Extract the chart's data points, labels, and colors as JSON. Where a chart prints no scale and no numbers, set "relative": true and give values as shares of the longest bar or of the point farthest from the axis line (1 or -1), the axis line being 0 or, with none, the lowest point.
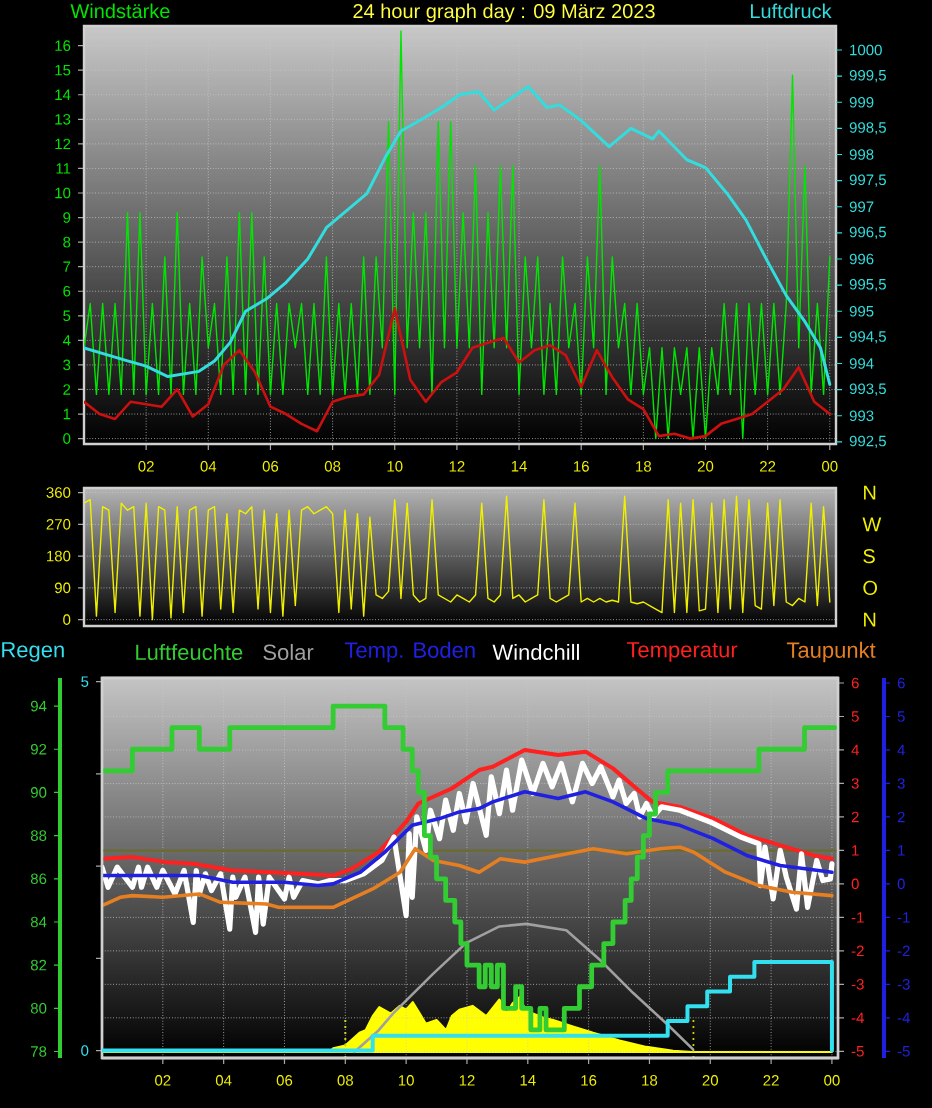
{
  "chart_data": [
    {
      "type": "line",
      "title": "24 hour graph day : 09 März 2023",
      "ylabel": "Windstärke",
      "y2label": "Luftdruck",
      "grid": true,
      "xlim": [
        "2023-03-09T00:00",
        "2023-03-10T00:12"
      ],
      "xticks": [
        {
          "value": "2023-03-09T02:00",
          "label": "02"
        },
        {
          "value": "2023-03-09T04:00",
          "label": "04"
        },
        {
          "value": "2023-03-09T06:00",
          "label": "06"
        },
        {
          "value": "2023-03-09T08:00",
          "label": "08"
        },
        {
          "value": "2023-03-09T10:00",
          "label": "10"
        },
        {
          "value": "2023-03-09T12:00",
          "label": "12"
        },
        {
          "value": "2023-03-09T14:00",
          "label": "14"
        },
        {
          "value": "2023-03-09T16:00",
          "label": "16"
        },
        {
          "value": "2023-03-09T18:00",
          "label": "18"
        },
        {
          "value": "2023-03-09T20:00",
          "label": "20"
        },
        {
          "value": "2023-03-09T22:00",
          "label": "22"
        },
        {
          "value": "2023-03-10T00:00",
          "label": "00"
        }
      ],
      "ylim": [
        -0.22,
        16.8
      ],
      "yticks": [
        0,
        1,
        2,
        3,
        4,
        5,
        6,
        7,
        8,
        9,
        10,
        11,
        12,
        13,
        14,
        15,
        16
      ],
      "y2lim": [
        992.46,
        1000.46
      ],
      "y2ticks": [
        {
          "value": 992.5,
          "label": "992,5"
        },
        993,
        {
          "value": 993.5,
          "label": "993,5"
        },
        994,
        {
          "value": 994.5,
          "label": "994,5"
        },
        995,
        {
          "value": 995.5,
          "label": "995,5"
        },
        996,
        {
          "value": 996.5,
          "label": "996,5"
        },
        997,
        {
          "value": 997.5,
          "label": "997,5"
        },
        998,
        {
          "value": 998.5,
          "label": "998,5"
        },
        999,
        {
          "value": 999.5,
          "label": "999,5"
        },
        1000
      ],
      "x": [
        "2023-03-09T00:00",
        "2023-03-09T00:12",
        "2023-03-09T00:24",
        "2023-03-09T00:36",
        "2023-03-09T00:48",
        "2023-03-09T01:00",
        "2023-03-09T01:12",
        "2023-03-09T01:24",
        "2023-03-09T01:36",
        "2023-03-09T01:48",
        "2023-03-09T02:00",
        "2023-03-09T02:12",
        "2023-03-09T02:24",
        "2023-03-09T02:36",
        "2023-03-09T02:48",
        "2023-03-09T03:00",
        "2023-03-09T03:12",
        "2023-03-09T03:24",
        "2023-03-09T03:36",
        "2023-03-09T03:48",
        "2023-03-09T04:00",
        "2023-03-09T04:12",
        "2023-03-09T04:24",
        "2023-03-09T04:36",
        "2023-03-09T04:48",
        "2023-03-09T05:00",
        "2023-03-09T05:12",
        "2023-03-09T05:24",
        "2023-03-09T05:36",
        "2023-03-09T05:48",
        "2023-03-09T06:00",
        "2023-03-09T06:12",
        "2023-03-09T06:24",
        "2023-03-09T06:36",
        "2023-03-09T06:48",
        "2023-03-09T07:00",
        "2023-03-09T07:12",
        "2023-03-09T07:24",
        "2023-03-09T07:36",
        "2023-03-09T07:48",
        "2023-03-09T08:00",
        "2023-03-09T08:12",
        "2023-03-09T08:24",
        "2023-03-09T08:36",
        "2023-03-09T08:48",
        "2023-03-09T09:00",
        "2023-03-09T09:12",
        "2023-03-09T09:24",
        "2023-03-09T09:36",
        "2023-03-09T09:48",
        "2023-03-09T10:00",
        "2023-03-09T10:12",
        "2023-03-09T10:24",
        "2023-03-09T10:36",
        "2023-03-09T10:48",
        "2023-03-09T11:00",
        "2023-03-09T11:12",
        "2023-03-09T11:24",
        "2023-03-09T11:36",
        "2023-03-09T11:48",
        "2023-03-09T12:00",
        "2023-03-09T12:12",
        "2023-03-09T12:24",
        "2023-03-09T12:36",
        "2023-03-09T12:48",
        "2023-03-09T13:00",
        "2023-03-09T13:12",
        "2023-03-09T13:24",
        "2023-03-09T13:36",
        "2023-03-09T13:48",
        "2023-03-09T14:00",
        "2023-03-09T14:12",
        "2023-03-09T14:24",
        "2023-03-09T14:36",
        "2023-03-09T14:48",
        "2023-03-09T15:00",
        "2023-03-09T15:12",
        "2023-03-09T15:24",
        "2023-03-09T15:36",
        "2023-03-09T15:48",
        "2023-03-09T16:00",
        "2023-03-09T16:12",
        "2023-03-09T16:24",
        "2023-03-09T16:36",
        "2023-03-09T16:48",
        "2023-03-09T17:00",
        "2023-03-09T17:12",
        "2023-03-09T17:24",
        "2023-03-09T17:36",
        "2023-03-09T17:48",
        "2023-03-09T18:00",
        "2023-03-09T18:12",
        "2023-03-09T18:24",
        "2023-03-09T18:36",
        "2023-03-09T18:48",
        "2023-03-09T19:00",
        "2023-03-09T19:12",
        "2023-03-09T19:24",
        "2023-03-09T19:36",
        "2023-03-09T19:48",
        "2023-03-09T20:00",
        "2023-03-09T20:12",
        "2023-03-09T20:24",
        "2023-03-09T20:36",
        "2023-03-09T20:48",
        "2023-03-09T21:00",
        "2023-03-09T21:12",
        "2023-03-09T21:24",
        "2023-03-09T21:36",
        "2023-03-09T21:48",
        "2023-03-09T22:00",
        "2023-03-09T22:12",
        "2023-03-09T22:24",
        "2023-03-09T22:36",
        "2023-03-09T22:48",
        "2023-03-09T23:00",
        "2023-03-09T23:12",
        "2023-03-09T23:24",
        "2023-03-09T23:36",
        "2023-03-09T23:48",
        "2023-03-10T00:00"
      ],
      "series": [
        {
          "color": "#00e600",
          "values": [
            3.7,
            5.5,
            1.8,
            5.5,
            1.8,
            5.5,
            1.8,
            9.2,
            1.8,
            9.2,
            1.8,
            5.5,
            1.8,
            7.4,
            1.8,
            9.2,
            1.8,
            5.5,
            1.8,
            7.4,
            3.7,
            5.5,
            1.8,
            7.4,
            1.8,
            9.2,
            1.8,
            9.2,
            1.8,
            7.4,
            1.8,
            5.5,
            1.8,
            5.5,
            3.7,
            5.5,
            1.8,
            5.5,
            1.8,
            7.4,
            1.8,
            5.5,
            1.8,
            5.5,
            1.8,
            7.4,
            1.8,
            7.4,
            3.7,
            12.9,
            1.8,
            16.6,
            3.7,
            9.2,
            3.7,
            9.2,
            1.8,
            12.9,
            3.7,
            12.9,
            3.7,
            9.2,
            3.7,
            11.1,
            1.8,
            9.2,
            3.7,
            11.1,
            3.7,
            11.1,
            1.8,
            7.4,
            3.7,
            7.4,
            1.8,
            5.5,
            1.8,
            7.4,
            3.7,
            5.5,
            1.8,
            7.4,
            3.7,
            11.1,
            1.8,
            7.4,
            3.7,
            5.5,
            1.8,
            5.5,
            1.8,
            3.7,
            0,
            3.7,
            0,
            3.7,
            1.8,
            3.7,
            0,
            3.7,
            0,
            3.7,
            1.8,
            5.5,
            1.8,
            5.5,
            0,
            5.5,
            1.8,
            5.5,
            1.8,
            5.5,
            1.8,
            5.5,
            14.8,
            3.7,
            11.1,
            1.8,
            5.5,
            1.8,
            7.4
          ]
        },
        {
          "color": "#cc1010",
          "x": [
            "2023-03-09T00:00",
            "2023-03-09T00:30",
            "2023-03-09T01:00",
            "2023-03-09T01:30",
            "2023-03-09T02:00",
            "2023-03-09T02:30",
            "2023-03-09T03:00",
            "2023-03-09T03:30",
            "2023-03-09T04:00",
            "2023-03-09T04:30",
            "2023-03-09T05:00",
            "2023-03-09T05:30",
            "2023-03-09T06:00",
            "2023-03-09T06:30",
            "2023-03-09T07:00",
            "2023-03-09T07:30",
            "2023-03-09T08:00",
            "2023-03-09T08:30",
            "2023-03-09T09:00",
            "2023-03-09T09:30",
            "2023-03-09T10:00",
            "2023-03-09T10:30",
            "2023-03-09T11:00",
            "2023-03-09T11:30",
            "2023-03-09T12:00",
            "2023-03-09T12:30",
            "2023-03-09T13:00",
            "2023-03-09T13:30",
            "2023-03-09T14:00",
            "2023-03-09T14:30",
            "2023-03-09T15:00",
            "2023-03-09T15:30",
            "2023-03-09T16:00",
            "2023-03-09T16:30",
            "2023-03-09T17:00",
            "2023-03-09T17:30",
            "2023-03-09T18:00",
            "2023-03-09T18:30",
            "2023-03-09T19:00",
            "2023-03-09T19:30",
            "2023-03-09T20:00",
            "2023-03-09T20:30",
            "2023-03-09T21:00",
            "2023-03-09T21:30",
            "2023-03-09T22:00",
            "2023-03-09T22:30",
            "2023-03-09T23:00",
            "2023-03-09T23:30",
            "2023-03-10T00:00"
          ],
          "values": [
            1.5,
            1.0,
            0.8,
            1.5,
            1.4,
            1.3,
            2.0,
            0.9,
            1.4,
            3.0,
            3.6,
            2.7,
            1.3,
            1.0,
            0.6,
            0.3,
            1.5,
            1.7,
            1.8,
            2.6,
            5.3,
            2.4,
            1.5,
            2.3,
            2.7,
            3.7,
            3.9,
            4.1,
            3.1,
            3.6,
            3.8,
            3.4,
            2.1,
            3.6,
            2.5,
            1.6,
            1.2,
            0.1,
            0.2,
            0,
            0.1,
            0.6,
            0.8,
            1.0,
            1.5,
            2.0,
            2.9,
            1.5,
            1.0
          ]
        },
        {
          "color": "#33dddd",
          "axis": "y2",
          "x": [
            "2023-03-09T00:00",
            "2023-03-09T01:24",
            "2023-03-09T02:00",
            "2023-03-09T02:42",
            "2023-03-09T03:42",
            "2023-03-09T04:12",
            "2023-03-09T04:42",
            "2023-03-09T05:12",
            "2023-03-09T05:54",
            "2023-03-09T06:30",
            "2023-03-09T07:12",
            "2023-03-09T07:48",
            "2023-03-09T08:30",
            "2023-03-09T09:06",
            "2023-03-09T09:42",
            "2023-03-09T10:12",
            "2023-03-09T10:48",
            "2023-03-09T11:30",
            "2023-03-09T12:06",
            "2023-03-09T12:42",
            "2023-03-09T13:12",
            "2023-03-09T13:48",
            "2023-03-09T14:18",
            "2023-03-09T14:54",
            "2023-03-09T15:18",
            "2023-03-09T16:00",
            "2023-03-09T16:54",
            "2023-03-09T17:36",
            "2023-03-09T18:18",
            "2023-03-09T18:30",
            "2023-03-09T19:24",
            "2023-03-09T20:00",
            "2023-03-09T20:42",
            "2023-03-09T21:18",
            "2023-03-09T22:00",
            "2023-03-09T22:36",
            "2023-03-09T23:12",
            "2023-03-09T23:42",
            "2023-03-10T00:00"
          ],
          "values": [
            994.3,
            994.05,
            993.95,
            993.75,
            993.85,
            994.05,
            994.4,
            995.0,
            995.25,
            995.55,
            996.0,
            996.6,
            996.95,
            997.25,
            997.95,
            998.45,
            998.65,
            998.9,
            999.15,
            999.2,
            998.85,
            999.1,
            999.3,
            998.9,
            998.95,
            998.65,
            998.15,
            998.5,
            998.3,
            998.45,
            997.9,
            997.75,
            997.25,
            996.75,
            995.95,
            995.3,
            994.8,
            994.3,
            993.6
          ]
        }
      ]
    },
    {
      "type": "line",
      "tick_labels": "y",
      "grid": "y",
      "annotations": [
        "N",
        "W",
        "S",
        "O",
        "N"
      ],
      "xlim": [
        "2023-03-09T00:00",
        "2023-03-10T00:12"
      ],
      "ylim": [
        -18,
        373
      ],
      "yticks": [
        0,
        90,
        180,
        270,
        360
      ],
      "x": [
        "2023-03-09T00:00",
        "2023-03-09T00:12",
        "2023-03-09T00:24",
        "2023-03-09T00:36",
        "2023-03-09T00:48",
        "2023-03-09T01:00",
        "2023-03-09T01:12",
        "2023-03-09T01:24",
        "2023-03-09T01:36",
        "2023-03-09T01:48",
        "2023-03-09T02:00",
        "2023-03-09T02:12",
        "2023-03-09T02:24",
        "2023-03-09T02:36",
        "2023-03-09T02:48",
        "2023-03-09T03:00",
        "2023-03-09T03:12",
        "2023-03-09T03:24",
        "2023-03-09T03:36",
        "2023-03-09T03:48",
        "2023-03-09T04:00",
        "2023-03-09T04:12",
        "2023-03-09T04:24",
        "2023-03-09T04:36",
        "2023-03-09T04:48",
        "2023-03-09T05:00",
        "2023-03-09T05:12",
        "2023-03-09T05:24",
        "2023-03-09T05:36",
        "2023-03-09T05:48",
        "2023-03-09T06:00",
        "2023-03-09T06:12",
        "2023-03-09T06:24",
        "2023-03-09T06:36",
        "2023-03-09T06:48",
        "2023-03-09T07:00",
        "2023-03-09T07:12",
        "2023-03-09T07:24",
        "2023-03-09T07:36",
        "2023-03-09T07:48",
        "2023-03-09T08:00",
        "2023-03-09T08:12",
        "2023-03-09T08:24",
        "2023-03-09T08:36",
        "2023-03-09T08:48",
        "2023-03-09T09:00",
        "2023-03-09T09:12",
        "2023-03-09T09:24",
        "2023-03-09T09:36",
        "2023-03-09T09:48",
        "2023-03-09T10:00",
        "2023-03-09T10:12",
        "2023-03-09T10:24",
        "2023-03-09T10:36",
        "2023-03-09T10:48",
        "2023-03-09T11:00",
        "2023-03-09T11:12",
        "2023-03-09T11:24",
        "2023-03-09T11:36",
        "2023-03-09T11:48",
        "2023-03-09T12:00",
        "2023-03-09T12:12",
        "2023-03-09T12:24",
        "2023-03-09T12:36",
        "2023-03-09T12:48",
        "2023-03-09T13:00",
        "2023-03-09T13:12",
        "2023-03-09T13:24",
        "2023-03-09T13:36",
        "2023-03-09T13:48",
        "2023-03-09T14:00",
        "2023-03-09T14:12",
        "2023-03-09T14:24",
        "2023-03-09T14:36",
        "2023-03-09T14:48",
        "2023-03-09T15:00",
        "2023-03-09T15:12",
        "2023-03-09T15:24",
        "2023-03-09T15:36",
        "2023-03-09T15:48",
        "2023-03-09T16:00",
        "2023-03-09T16:12",
        "2023-03-09T16:24",
        "2023-03-09T16:36",
        "2023-03-09T16:48",
        "2023-03-09T17:00",
        "2023-03-09T17:12",
        "2023-03-09T17:24",
        "2023-03-09T17:36",
        "2023-03-09T17:48",
        "2023-03-09T18:00",
        "2023-03-09T18:12",
        "2023-03-09T18:24",
        "2023-03-09T18:36",
        "2023-03-09T18:48",
        "2023-03-09T19:00",
        "2023-03-09T19:12",
        "2023-03-09T19:24",
        "2023-03-09T19:36",
        "2023-03-09T19:48",
        "2023-03-09T20:00",
        "2023-03-09T20:12",
        "2023-03-09T20:24",
        "2023-03-09T20:36",
        "2023-03-09T20:48",
        "2023-03-09T21:00",
        "2023-03-09T21:12",
        "2023-03-09T21:24",
        "2023-03-09T21:36",
        "2023-03-09T21:48",
        "2023-03-09T22:00",
        "2023-03-09T22:12",
        "2023-03-09T22:24",
        "2023-03-09T22:36",
        "2023-03-09T22:48",
        "2023-03-09T23:00",
        "2023-03-09T23:12",
        "2023-03-09T23:24",
        "2023-03-09T23:36",
        "2023-03-09T23:48",
        "2023-03-10T00:00"
      ],
      "series": [
        {
          "color": "#f0f000",
          "values": [
            330,
            340,
            10,
            320,
            310,
            20,
            330,
            310,
            320,
            10,
            330,
            0,
            320,
            310,
            5,
            320,
            20,
            310,
            320,
            10,
            310,
            320,
            30,
            300,
            20,
            310,
            300,
            320,
            30,
            310,
            20,
            300,
            10,
            310,
            40,
            310,
            320,
            300,
            310,
            320,
            300,
            20,
            310,
            30,
            300,
            10,
            290,
            70,
            60,
            80,
            340,
            60,
            330,
            70,
            50,
            60,
            340,
            70,
            60,
            50,
            70,
            60,
            50,
            70,
            330,
            60,
            50,
            70,
            350,
            60,
            70,
            50,
            60,
            70,
            340,
            60,
            50,
            60,
            70,
            330,
            50,
            60,
            50,
            60,
            50,
            55,
            50,
            350,
            50,
            45,
            50,
            40,
            30,
            20,
            340,
            20,
            330,
            20,
            340,
            25,
            30,
            330,
            20,
            340,
            30,
            350,
            20,
            340,
            40,
            30,
            330,
            40,
            340,
            50,
            40,
            60,
            50,
            330,
            40,
            320,
            50
          ]
        }
      ]
    },
    {
      "type": "line",
      "legend": "top",
      "grid": true,
      "xlim": [
        "2023-03-09T00:00",
        "2023-03-10T00:12"
      ],
      "xticks": [
        {
          "value": "2023-03-09T02:00",
          "label": "02"
        },
        {
          "value": "2023-03-09T04:00",
          "label": "04"
        },
        {
          "value": "2023-03-09T06:00",
          "label": "06"
        },
        {
          "value": "2023-03-09T08:00",
          "label": "08"
        },
        {
          "value": "2023-03-09T10:00",
          "label": "10"
        },
        {
          "value": "2023-03-09T12:00",
          "label": "12"
        },
        {
          "value": "2023-03-09T14:00",
          "label": "14"
        },
        {
          "value": "2023-03-09T16:00",
          "label": "16"
        },
        {
          "value": "2023-03-09T18:00",
          "label": "18"
        },
        {
          "value": "2023-03-09T20:00",
          "label": "20"
        },
        {
          "value": "2023-03-09T22:00",
          "label": "22"
        },
        {
          "value": "2023-03-10T00:00",
          "label": "00"
        }
      ],
      "ylim": [
        -5.2,
        6.15
      ],
      "yticks": [
        -5,
        -4,
        -3,
        -2,
        -1,
        0,
        1,
        2,
        3,
        4,
        5,
        6
      ],
      "y2lim": [
        -5.2,
        6.15
      ],
      "y2ticks": [
        -5,
        -4,
        -3,
        -2,
        -1,
        0,
        1,
        2,
        3,
        4,
        5,
        6
      ],
      "y3lim": [
        77.7,
        95.3
      ],
      "y3ticks": [
        78,
        80,
        82,
        84,
        86,
        88,
        90,
        92,
        94
      ],
      "ref_lines": [
        {
          "axis": "y",
          "value": 1.0,
          "color": "#6b6b23"
        }
      ],
      "series": [
        {
          "name": "Temperatur",
          "color": "#ff2020",
          "x": [
            "2023-03-09T00:06",
            "2023-03-09T01:00",
            "2023-03-09T02:06",
            "2023-03-09T03:00",
            "2023-03-09T04:18",
            "2023-03-09T05:30",
            "2023-03-09T06:30",
            "2023-03-09T07:36",
            "2023-03-09T08:12",
            "2023-03-09T09:06",
            "2023-03-09T10:00",
            "2023-03-09T10:24",
            "2023-03-09T11:30",
            "2023-03-09T12:24",
            "2023-03-09T12:51",
            "2023-03-09T13:54",
            "2023-03-09T15:00",
            "2023-03-09T15:54",
            "2023-03-09T16:48",
            "2023-03-09T17:42",
            "2023-03-09T18:06",
            "2023-03-09T19:00",
            "2023-03-09T20:06",
            "2023-03-09T21:12",
            "2023-03-09T22:18",
            "2023-03-09T23:24",
            "2023-03-10T00:00"
          ],
          "values": [
            0.75,
            0.8,
            0.65,
            0.6,
            0.4,
            0.35,
            0.3,
            0.25,
            0.45,
            0.95,
            1.85,
            2.4,
            2.85,
            3.4,
            3.5,
            4.0,
            3.85,
            3.95,
            3.45,
            2.75,
            2.45,
            2.3,
            1.95,
            1.45,
            1.15,
            0.85,
            0.75
          ]
        },
        {
          "name": "Windchill",
          "color": "#ffffff",
          "x": [
            "2023-03-09T00:00",
            "2023-03-09T00:12",
            "2023-03-09T00:30",
            "2023-03-09T01:00",
            "2023-03-09T01:12",
            "2023-03-09T01:18",
            "2023-03-09T01:30",
            "2023-03-09T01:48",
            "2023-03-09T02:00",
            "2023-03-09T02:24",
            "2023-03-09T02:42",
            "2023-03-09T03:00",
            "2023-03-09T03:06",
            "2023-03-09T03:12",
            "2023-03-09T03:24",
            "2023-03-09T03:36",
            "2023-03-09T03:54",
            "2023-03-09T04:12",
            "2023-03-09T04:18",
            "2023-03-09T04:24",
            "2023-03-09T04:42",
            "2023-03-09T05:03",
            "2023-03-09T05:09",
            "2023-03-09T05:18",
            "2023-03-09T05:30",
            "2023-03-09T06:00",
            "2023-03-09T06:09",
            "2023-03-09T06:18",
            "2023-03-09T06:36",
            "2023-03-09T07:06",
            "2023-03-09T07:30",
            "2023-03-09T08:00",
            "2023-03-09T08:36",
            "2023-03-09T09:12",
            "2023-03-09T09:36",
            "2023-03-09T10:00",
            "2023-03-09T10:06",
            "2023-03-09T10:12",
            "2023-03-09T10:21",
            "2023-03-09T10:39",
            "2023-03-09T10:48",
            "2023-03-09T11:06",
            "2023-03-09T11:18",
            "2023-03-09T11:33",
            "2023-03-09T11:45",
            "2023-03-09T11:58",
            "2023-03-09T12:12",
            "2023-03-09T12:38",
            "2023-03-09T12:48",
            "2023-03-09T13:04",
            "2023-03-09T13:18",
            "2023-03-09T13:30",
            "2023-03-09T13:48",
            "2023-03-09T14:10",
            "2023-03-09T14:30",
            "2023-03-09T14:48",
            "2023-03-09T15:06",
            "2023-03-09T15:28",
            "2023-03-09T15:48",
            "2023-03-09T16:07",
            "2023-03-09T16:24",
            "2023-03-09T16:48",
            "2023-03-09T17:00",
            "2023-03-09T17:14",
            "2023-03-09T17:30",
            "2023-03-09T17:41",
            "2023-03-09T17:54",
            "2023-03-09T18:07",
            "2023-03-09T18:24",
            "2023-03-09T19:00",
            "2023-03-09T20:00",
            "2023-03-09T21:00",
            "2023-03-09T21:36",
            "2023-03-09T21:39",
            "2023-03-09T21:48",
            "2023-03-09T22:04",
            "2023-03-09T22:18",
            "2023-03-09T22:30",
            "2023-03-09T22:50",
            "2023-03-09T23:00",
            "2023-03-09T23:12",
            "2023-03-09T23:30",
            "2023-03-09T23:42",
            "2023-03-09T23:57",
            "2023-03-10T00:00"
          ],
          "values": [
            0.5,
            -0.1,
            0.5,
            -0.1,
            0.5,
            -0.1,
            0.5,
            -0.1,
            0.4,
            -0.3,
            0.4,
            -1.15,
            0.4,
            -0.3,
            0.3,
            -0.2,
            0.3,
            -1.35,
            0.2,
            -0.4,
            0.2,
            -1.45,
            0.2,
            -1.2,
            0.2,
            -0.45,
            0.2,
            -0.4,
            0.1,
            0,
            0.1,
            0.1,
            0.3,
            0.7,
            1.4,
            -0.95,
            1.5,
            -0.4,
            2,
            1,
            2.2,
            1.35,
            2.5,
            1.6,
            2.7,
            1.85,
            3,
            1.45,
            3.2,
            2.1,
            3.4,
            2.2,
            3.7,
            2.7,
            3.6,
            2.9,
            3.6,
            2.45,
            3.6,
            3,
            3.5,
            2.6,
            3.1,
            2.4,
            2.7,
            2,
            2.4,
            2,
            2.3,
            2.2,
            1.85,
            1.4,
            1.2,
            -0.05,
            1.1,
            -0.45,
            1,
            0.2,
            -0.75,
            0.9,
            -0.7,
            0.7,
            0.1,
            0.15,
            0.6
          ]
        },
        {
          "name": "Taupunkt",
          "color": "#e67e22",
          "x": [
            "2023-03-09T00:00",
            "2023-03-09T00:36",
            "2023-03-09T01:00",
            "2023-03-09T02:00",
            "2023-03-09T03:12",
            "2023-03-09T03:54",
            "2023-03-09T05:24",
            "2023-03-09T05:48",
            "2023-03-09T07:36",
            "2023-03-09T08:54",
            "2023-03-09T09:48",
            "2023-03-09T10:18",
            "2023-03-09T10:54",
            "2023-03-09T11:45",
            "2023-03-09T12:24",
            "2023-03-09T13:06",
            "2023-03-09T13:54",
            "2023-03-09T15:00",
            "2023-03-09T16:09",
            "2023-03-09T17:15",
            "2023-03-09T18:21",
            "2023-03-09T19:00",
            "2023-03-09T19:27",
            "2023-03-09T20:30",
            "2023-03-09T21:36",
            "2023-03-09T22:42",
            "2023-03-10T00:00"
          ],
          "values": [
            -0.65,
            -0.4,
            -0.35,
            -0.4,
            -0.3,
            -0.55,
            -0.6,
            -0.7,
            -0.7,
            -0.15,
            0.35,
            1.05,
            0.7,
            0.55,
            0.35,
            0.75,
            0.65,
            0.85,
            1.05,
            0.9,
            1.05,
            1.1,
            0.95,
            0.35,
            -0.05,
            -0.25,
            -0.35
          ]
        },
        {
          "name": "Temp. Boden",
          "color": "#2020e0",
          "axis": "y2",
          "x": [
            "2023-03-09T00:00",
            "2023-03-09T01:30",
            "2023-03-09T03:12",
            "2023-03-09T04:18",
            "2023-03-09T06:00",
            "2023-03-09T07:06",
            "2023-03-09T07:36",
            "2023-03-09T08:30",
            "2023-03-09T09:18",
            "2023-03-09T10:12",
            "2023-03-09T11:06",
            "2023-03-09T11:45",
            "2023-03-09T12:24",
            "2023-03-09T12:51",
            "2023-03-09T13:54",
            "2023-03-09T15:00",
            "2023-03-09T15:54",
            "2023-03-09T16:48",
            "2023-03-09T17:54",
            "2023-03-09T19:00",
            "2023-03-09T20:06",
            "2023-03-09T21:12",
            "2023-03-09T22:18",
            "2023-03-10T00:00"
          ],
          "values": [
            0.25,
            0.25,
            0.25,
            0.05,
            0.05,
            -0.05,
            0,
            0.35,
            0.95,
            1.75,
            1.95,
            2.15,
            2.25,
            2.45,
            2.75,
            2.55,
            2.75,
            2.45,
            1.95,
            1.75,
            1.35,
            0.85,
            0.55,
            0.35
          ]
        },
        {
          "name": "Luftfeuchte",
          "type": "step",
          "color": "#33cc33",
          "axis": "y3",
          "x": [
            "2023-03-09T00:00",
            "2023-03-09T01:00",
            "2023-03-09T02:18",
            "2023-03-09T03:12",
            "2023-03-09T04:12",
            "2023-03-09T07:36",
            "2023-03-09T09:18",
            "2023-03-09T09:54",
            "2023-03-09T10:12",
            "2023-03-09T10:24",
            "2023-03-09T10:36",
            "2023-03-09T10:48",
            "2023-03-09T11:00",
            "2023-03-09T11:18",
            "2023-03-09T11:36",
            "2023-03-09T11:48",
            "2023-03-09T12:00",
            "2023-03-09T12:24",
            "2023-03-09T12:36",
            "2023-03-09T12:48",
            "2023-03-09T13:00",
            "2023-03-09T13:12",
            "2023-03-09T13:36",
            "2023-03-09T13:48",
            "2023-03-09T14:06",
            "2023-03-09T14:24",
            "2023-03-09T14:36",
            "2023-03-09T15:12",
            "2023-03-09T15:42",
            "2023-03-09T16:06",
            "2023-03-09T16:30",
            "2023-03-09T16:48",
            "2023-03-09T17:12",
            "2023-03-09T17:24",
            "2023-03-09T17:36",
            "2023-03-09T17:48",
            "2023-03-09T18:00",
            "2023-03-09T18:12",
            "2023-03-09T18:36",
            "2023-03-09T21:36",
            "2023-03-09T23:06",
            "2023-03-10T00:06"
          ],
          "values": [
            91,
            92,
            93,
            92,
            93,
            94,
            93,
            92,
            91,
            90,
            88,
            87,
            86,
            85,
            84,
            83,
            82,
            81,
            82,
            81,
            82,
            80,
            81,
            80,
            79,
            80,
            79,
            80,
            81,
            82,
            83,
            84,
            85,
            86,
            87,
            88,
            89,
            90,
            91,
            92,
            93,
            93
          ]
        }
      ]
    },
    {
      "type": "step",
      "legend": "top",
      "tick_labels": "y",
      "xlim": [
        "2023-03-09T00:00",
        "2023-03-10T00:12"
      ],
      "ylim": [
        -0.1,
        5.05
      ],
      "yticks": [
        0,
        {
          "value": 1.25,
          "label": null
        },
        {
          "value": 2.5,
          "label": null
        },
        {
          "value": 3.75,
          "label": null
        },
        5
      ],
      "series": [
        {
          "name": "Regen",
          "color": "#33e0f0",
          "x": [
            "2023-03-09T00:00",
            "2023-03-09T08:54",
            "2023-03-09T18:36",
            "2023-03-09T19:15",
            "2023-03-09T19:54",
            "2023-03-09T20:39",
            "2023-03-09T21:27",
            "2023-03-10T00:00"
          ],
          "values": [
            0,
            0.2,
            0.4,
            0.6,
            0.8,
            1.0,
            1.2,
            0
          ]
        }
      ]
    },
    {
      "type": "area",
      "relative": true,
      "legend": "top",
      "xlim": [
        "2023-03-09T00:00",
        "2023-03-10T00:12"
      ],
      "ref_lines": [
        {
          "axis": "x",
          "value": "2023-03-09T08:00",
          "color": "#d0d000",
          "line_style": "dotted"
        },
        {
          "axis": "x",
          "value": "2023-03-09T19:27",
          "color": "#d0d000",
          "line_style": "dotted"
        }
      ],
      "series": [
        {
          "color": "#ffff00",
          "x": [
            "2023-03-09T00:00",
            "2023-03-09T07:30",
            "2023-03-09T07:36",
            "2023-03-09T08:00",
            "2023-03-09T08:28",
            "2023-03-09T08:40",
            "2023-03-09T08:54",
            "2023-03-09T09:07",
            "2023-03-09T09:30",
            "2023-03-09T09:47",
            "2023-03-09T10:00",
            "2023-03-09T10:13",
            "2023-03-09T10:27",
            "2023-03-09T10:39",
            "2023-03-09T11:00",
            "2023-03-09T11:19",
            "2023-03-09T11:30",
            "2023-03-09T11:45",
            "2023-03-09T12:11",
            "2023-03-09T12:38",
            "2023-03-09T13:04",
            "2023-03-09T13:18",
            "2023-03-09T13:30",
            "2023-03-09T13:44",
            "2023-03-09T13:54",
            "2023-03-09T14:10",
            "2023-03-09T14:30",
            "2023-03-09T14:50",
            "2023-03-09T15:29",
            "2023-03-09T16:09",
            "2023-03-09T17:01",
            "2023-03-09T17:54",
            "2023-03-09T18:47",
            "2023-03-09T19:24",
            "2023-03-10T00:00"
          ],
          "values": [
            0,
            0,
            0.03,
            0.05,
            0.15,
            0.17,
            0.28,
            0.35,
            0.3,
            0.36,
            0.33,
            0.39,
            0.3,
            0.22,
            0.25,
            0.17,
            0.28,
            0.33,
            0.36,
            0.28,
            0.41,
            0.3,
            0.38,
            0.43,
            0.34,
            0.3,
            0.27,
            0.25,
            0.2,
            0.15,
            0.09,
            0.04,
            0.01,
            0,
            0
          ]
        },
        {
          "name": "Solar",
          "type": "line",
          "color": "#a0a0a0",
          "x": [
            "2023-03-09T08:18",
            "2023-03-09T09:06",
            "2023-03-09T09:34",
            "2023-03-09T09:47",
            "2023-03-09T10:53",
            "2023-03-09T11:58",
            "2023-03-09T13:04",
            "2023-03-09T13:57",
            "2023-03-09T15:16",
            "2023-03-09T16:22",
            "2023-03-09T17:28",
            "2023-03-09T18:34",
            "2023-03-09T19:26"
          ],
          "values": [
            0,
            0.17,
            0.3,
            0.35,
            0.61,
            0.85,
            0.98,
            1,
            0.95,
            0.72,
            0.46,
            0.22,
            0.02
          ]
        }
      ]
    }
  ]
}
